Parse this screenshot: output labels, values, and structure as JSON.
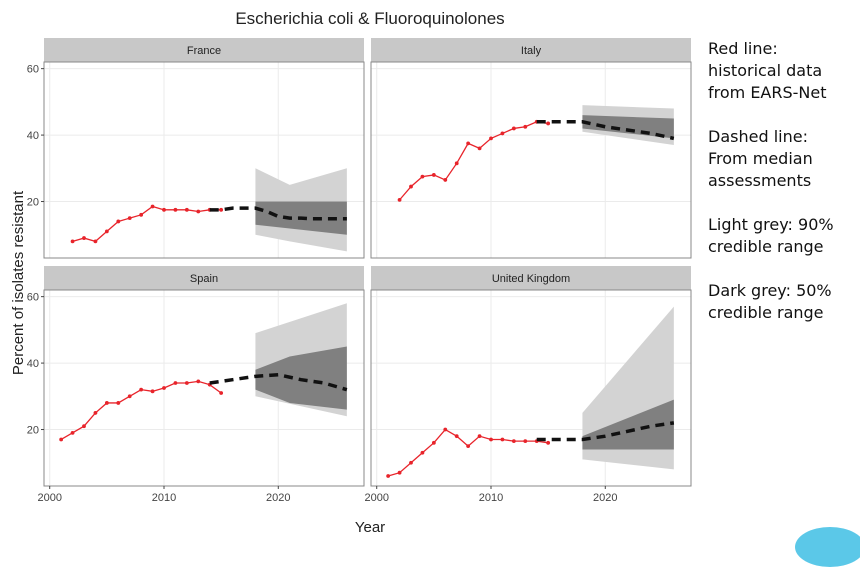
{
  "chart_data": {
    "type": "line",
    "title": "Escherichia coli & Fluoroquinolones",
    "xlabel": "Year",
    "ylabel": "Percent of isolates resistant",
    "xlim": [
      1999.5,
      2027.5
    ],
    "ylim": [
      3,
      62
    ],
    "x_ticks": [
      2000,
      2010,
      2020
    ],
    "y_ticks": [
      20,
      40,
      60
    ],
    "grid": true,
    "colors": {
      "historical": "#e8242b",
      "median": "#111111",
      "band90": "#d3d3d3",
      "band50": "#808080",
      "strip": "#c8c8c8",
      "panel_border": "#888888"
    },
    "panels": [
      {
        "name": "France",
        "historical": {
          "x": [
            2002,
            2003,
            2004,
            2005,
            2006,
            2007,
            2008,
            2009,
            2010,
            2011,
            2012,
            2013,
            2014,
            2015
          ],
          "y": [
            8,
            9,
            8,
            11,
            14,
            15,
            16,
            18.5,
            17.5,
            17.5,
            17.5,
            17,
            17.5,
            17.5
          ]
        },
        "median": {
          "x": [
            2014,
            2015,
            2016,
            2018,
            2019,
            2020,
            2021,
            2022,
            2023,
            2024,
            2025,
            2026
          ],
          "y": [
            17.5,
            17.5,
            18,
            18,
            17,
            15.5,
            15,
            15,
            14.8,
            14.8,
            14.8,
            14.8
          ]
        },
        "band90": {
          "x": [
            2018,
            2021,
            2026
          ],
          "lower": [
            10,
            8,
            5
          ],
          "upper": [
            30,
            25,
            30
          ]
        },
        "band50": {
          "x": [
            2018,
            2026
          ],
          "lower": [
            13,
            10
          ],
          "upper": [
            20,
            20
          ]
        }
      },
      {
        "name": "Italy",
        "historical": {
          "x": [
            2002,
            2003,
            2004,
            2005,
            2006,
            2007,
            2008,
            2009,
            2010,
            2011,
            2012,
            2013,
            2014,
            2015
          ],
          "y": [
            20.5,
            24.5,
            27.5,
            28,
            26.5,
            31.5,
            37.5,
            36,
            39,
            40.5,
            42,
            42.5,
            44,
            43.5
          ]
        },
        "median": {
          "x": [
            2014,
            2015,
            2016,
            2018,
            2020,
            2022,
            2024,
            2026
          ],
          "y": [
            44,
            44,
            44,
            44,
            42.5,
            41.5,
            40.5,
            39
          ]
        },
        "band90": {
          "x": [
            2018,
            2026
          ],
          "lower": [
            41,
            37
          ],
          "upper": [
            49,
            48
          ]
        },
        "band50": {
          "x": [
            2018,
            2026
          ],
          "lower": [
            42,
            39
          ],
          "upper": [
            46,
            45
          ]
        }
      },
      {
        "name": "Spain",
        "historical": {
          "x": [
            2001,
            2002,
            2003,
            2004,
            2005,
            2006,
            2007,
            2008,
            2009,
            2010,
            2011,
            2012,
            2013,
            2014,
            2015
          ],
          "y": [
            17,
            19,
            21,
            25,
            28,
            28,
            30,
            32,
            31.5,
            32.5,
            34,
            34,
            34.5,
            33.5,
            31
          ]
        },
        "median": {
          "x": [
            2014,
            2016,
            2018,
            2020,
            2022,
            2024,
            2026
          ],
          "y": [
            34,
            35,
            36,
            36.5,
            35,
            34,
            32
          ]
        },
        "band90": {
          "x": [
            2018,
            2026
          ],
          "lower": [
            30,
            24
          ],
          "upper": [
            49,
            58
          ]
        },
        "band50": {
          "x": [
            2018,
            2021,
            2026
          ],
          "lower": [
            32,
            28,
            26
          ],
          "upper": [
            38,
            42,
            45
          ]
        }
      },
      {
        "name": "United Kingdom",
        "historical": {
          "x": [
            2001,
            2002,
            2003,
            2004,
            2005,
            2006,
            2007,
            2008,
            2009,
            2010,
            2011,
            2012,
            2013,
            2014,
            2015
          ],
          "y": [
            6,
            7,
            10,
            13,
            16,
            20,
            18,
            15,
            18,
            17,
            17,
            16.5,
            16.5,
            16.5,
            16
          ]
        },
        "median": {
          "x": [
            2014,
            2015,
            2016,
            2018,
            2020,
            2022,
            2024,
            2026
          ],
          "y": [
            17,
            17,
            17,
            17,
            18,
            19.5,
            21,
            22
          ]
        },
        "band90": {
          "x": [
            2018,
            2026
          ],
          "lower": [
            11,
            8
          ],
          "upper": [
            25,
            57
          ]
        },
        "band50": {
          "x": [
            2018,
            2026
          ],
          "lower": [
            14,
            14
          ],
          "upper": [
            18,
            29
          ]
        }
      }
    ]
  },
  "notes": [
    "Red line:\nhistorical data\nfrom EARS-Net",
    "Dashed line:\nFrom median\nassessments",
    "Light grey: 90%\ncredible range",
    "Dark grey: 50%\ncredible range"
  ]
}
